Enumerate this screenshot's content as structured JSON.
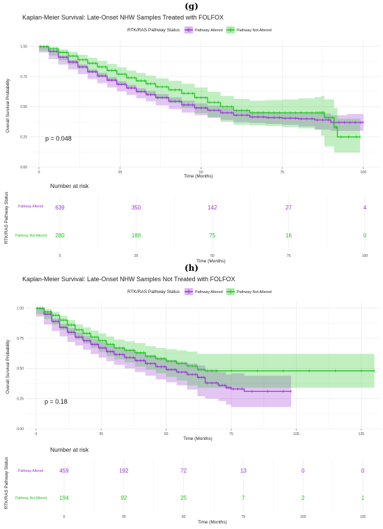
{
  "panels": [
    {
      "panel_label": "(g)",
      "title": "Kaplan-Meier Survival: Late-Onset NHW Samples Treated with FOLFOX",
      "legend_title": "RTK/RAS Pathway Status",
      "legend_items": [
        "Pathway Altered",
        "Pathway Not Altered"
      ],
      "pvalue": "p = 0.048",
      "risk_title": "Number at risk",
      "risk_ylabel": "RTK/RAS Pathway Status",
      "risk_rows": [
        {
          "label": "Pathway Altered",
          "counts": [
            "639",
            "350",
            "142",
            "27",
            "4"
          ]
        },
        {
          "label": "Pathway Not Altered",
          "counts": [
            "280",
            "188",
            "75",
            "16",
            "0"
          ]
        }
      ],
      "risk_xlabel": "Time (Months)"
    },
    {
      "panel_label": "(h)",
      "title": "Kaplan-Meier Survival: Late-Onset NHW Samples Not Treated with FOLFOX",
      "legend_title": "RTK/RAS Pathway Status",
      "legend_items": [
        "Pathway Altered",
        "Pathway Not Altered"
      ],
      "pvalue": "p = 0.18",
      "risk_title": "Number at risk",
      "risk_ylabel": "RTK/RAS Pathway Status",
      "risk_rows": [
        {
          "label": "Pathway Altered",
          "counts": [
            "459",
            "192",
            "72",
            "13",
            "0",
            "0"
          ]
        },
        {
          "label": "Pathway Not Altered",
          "counts": [
            "194",
            "92",
            "25",
            "7",
            "2",
            "1"
          ]
        }
      ],
      "risk_xlabel": "Time (Months)"
    }
  ],
  "colors": {
    "altered": "#9b30d9",
    "not_altered": "#1fc41f",
    "grid": "#ececec",
    "text": "#333333"
  },
  "chart_data": [
    {
      "type": "line",
      "title": "Kaplan-Meier Survival: Late-Onset NHW Samples Treated with FOLFOX",
      "xlabel": "Time (Months)",
      "ylabel": "Overall Survival Probability",
      "xlim": [
        -3,
        105
      ],
      "ylim": [
        0,
        1.05
      ],
      "xticks": [
        0,
        25,
        50,
        75,
        100
      ],
      "yticks": [
        0,
        0.25,
        0.5,
        0.75,
        1.0
      ],
      "ytick_labels": [
        "0.00",
        "0.25",
        "0.50",
        "0.75",
        "1.00"
      ],
      "grid": true,
      "legend_position": "top",
      "series": [
        {
          "name": "Pathway Altered",
          "color": "#9b30d9",
          "x": [
            0,
            3,
            6,
            9,
            12,
            15,
            18,
            21,
            24,
            27,
            30,
            33,
            36,
            40,
            44,
            48,
            52,
            56,
            60,
            65,
            70,
            75,
            80,
            85,
            90,
            95,
            100
          ],
          "y": [
            1.0,
            0.96,
            0.91,
            0.87,
            0.83,
            0.79,
            0.755,
            0.72,
            0.685,
            0.655,
            0.625,
            0.6,
            0.575,
            0.545,
            0.515,
            0.49,
            0.47,
            0.45,
            0.43,
            0.415,
            0.41,
            0.405,
            0.4,
            0.39,
            0.37,
            0.37,
            0.37
          ],
          "ci_lower": [
            1.0,
            0.95,
            0.895,
            0.85,
            0.81,
            0.77,
            0.73,
            0.695,
            0.66,
            0.628,
            0.597,
            0.57,
            0.545,
            0.512,
            0.48,
            0.452,
            0.43,
            0.41,
            0.39,
            0.372,
            0.365,
            0.358,
            0.35,
            0.336,
            0.31,
            0.3,
            0.3
          ],
          "ci_upper": [
            1.0,
            0.97,
            0.925,
            0.89,
            0.85,
            0.81,
            0.78,
            0.745,
            0.71,
            0.682,
            0.653,
            0.63,
            0.605,
            0.578,
            0.55,
            0.528,
            0.51,
            0.49,
            0.47,
            0.458,
            0.455,
            0.452,
            0.45,
            0.444,
            0.43,
            0.44,
            0.45
          ]
        },
        {
          "name": "Pathway Not Altered",
          "color": "#1fc41f",
          "x": [
            0,
            3,
            6,
            9,
            12,
            15,
            18,
            21,
            24,
            27,
            30,
            33,
            36,
            40,
            44,
            48,
            52,
            56,
            60,
            65,
            70,
            75,
            80,
            85,
            87,
            88,
            91,
            92,
            99
          ],
          "y": [
            1.0,
            0.98,
            0.95,
            0.92,
            0.89,
            0.86,
            0.83,
            0.8,
            0.77,
            0.74,
            0.715,
            0.69,
            0.665,
            0.64,
            0.61,
            0.575,
            0.535,
            0.5,
            0.47,
            0.45,
            0.45,
            0.45,
            0.45,
            0.45,
            0.45,
            0.41,
            0.33,
            0.25,
            0.25
          ],
          "ci_lower": [
            1.0,
            0.965,
            0.925,
            0.885,
            0.85,
            0.815,
            0.78,
            0.745,
            0.713,
            0.68,
            0.65,
            0.622,
            0.595,
            0.565,
            0.53,
            0.49,
            0.447,
            0.41,
            0.375,
            0.35,
            0.345,
            0.34,
            0.33,
            0.32,
            0.31,
            0.26,
            0.17,
            0.12,
            0.12
          ],
          "ci_upper": [
            1.0,
            0.995,
            0.975,
            0.955,
            0.93,
            0.905,
            0.88,
            0.855,
            0.827,
            0.8,
            0.78,
            0.758,
            0.735,
            0.715,
            0.69,
            0.66,
            0.623,
            0.59,
            0.565,
            0.55,
            0.555,
            0.56,
            0.57,
            0.58,
            0.59,
            0.56,
            0.49,
            0.4,
            0.4
          ]
        }
      ]
    },
    {
      "type": "line",
      "title": "Kaplan-Meier Survival: Late-Onset NHW Samples Not Treated with FOLFOX",
      "xlabel": "Time (Months)",
      "ylabel": "Overall Survival Probability",
      "xlim": [
        -4,
        132
      ],
      "ylim": [
        0,
        1.05
      ],
      "xticks": [
        0,
        25,
        50,
        75,
        100,
        125
      ],
      "yticks": [
        0,
        0.25,
        0.5,
        0.75,
        1.0
      ],
      "ytick_labels": [
        "0.00",
        "0.25",
        "0.50",
        "0.75",
        "1.00"
      ],
      "grid": true,
      "legend_position": "top",
      "series": [
        {
          "name": "Pathway Altered",
          "color": "#9b30d9",
          "x": [
            0,
            3,
            6,
            9,
            12,
            15,
            18,
            21,
            24,
            27,
            30,
            34,
            38,
            42,
            46,
            50,
            54,
            58,
            62,
            65,
            70,
            73,
            75,
            80,
            98
          ],
          "y": [
            1.0,
            0.95,
            0.89,
            0.84,
            0.8,
            0.76,
            0.73,
            0.7,
            0.67,
            0.64,
            0.615,
            0.59,
            0.565,
            0.54,
            0.515,
            0.49,
            0.47,
            0.45,
            0.425,
            0.38,
            0.36,
            0.34,
            0.33,
            0.31,
            0.31
          ],
          "ci_lower": [
            1.0,
            0.93,
            0.865,
            0.81,
            0.765,
            0.72,
            0.69,
            0.655,
            0.62,
            0.59,
            0.56,
            0.53,
            0.5,
            0.47,
            0.44,
            0.41,
            0.385,
            0.36,
            0.325,
            0.27,
            0.25,
            0.23,
            0.2,
            0.18,
            0.18
          ],
          "ci_upper": [
            1.0,
            0.97,
            0.915,
            0.87,
            0.835,
            0.8,
            0.77,
            0.745,
            0.72,
            0.69,
            0.67,
            0.65,
            0.63,
            0.61,
            0.59,
            0.57,
            0.555,
            0.54,
            0.525,
            0.49,
            0.47,
            0.45,
            0.46,
            0.44,
            0.44
          ]
        },
        {
          "name": "Pathway Not Altered",
          "color": "#1fc41f",
          "x": [
            0,
            3,
            6,
            9,
            12,
            15,
            18,
            21,
            24,
            27,
            30,
            34,
            38,
            42,
            46,
            50,
            54,
            58,
            62,
            65,
            70,
            100,
            130
          ],
          "y": [
            1.0,
            0.97,
            0.94,
            0.9,
            0.86,
            0.82,
            0.79,
            0.76,
            0.73,
            0.7,
            0.67,
            0.65,
            0.63,
            0.6,
            0.58,
            0.56,
            0.54,
            0.52,
            0.49,
            0.48,
            0.48,
            0.48,
            0.48
          ],
          "ci_lower": [
            1.0,
            0.95,
            0.91,
            0.865,
            0.82,
            0.775,
            0.74,
            0.705,
            0.67,
            0.635,
            0.6,
            0.575,
            0.55,
            0.515,
            0.49,
            0.46,
            0.43,
            0.4,
            0.36,
            0.34,
            0.34,
            0.34,
            0.34
          ],
          "ci_upper": [
            1.0,
            0.99,
            0.97,
            0.935,
            0.9,
            0.865,
            0.84,
            0.815,
            0.79,
            0.765,
            0.74,
            0.725,
            0.71,
            0.685,
            0.67,
            0.66,
            0.65,
            0.64,
            0.62,
            0.62,
            0.62,
            0.62,
            0.62
          ]
        }
      ]
    },
    {
      "type": "table",
      "title": "Number at risk",
      "xlabel": "Time (Months)",
      "ylabel": "RTK/RAS Pathway Status",
      "x": [
        0,
        25,
        50,
        75,
        100
      ],
      "rows": [
        {
          "name": "Pathway Altered",
          "values": [
            639,
            350,
            142,
            27,
            4
          ]
        },
        {
          "name": "Pathway Not Altered",
          "values": [
            280,
            188,
            75,
            16,
            0
          ]
        }
      ]
    },
    {
      "type": "table",
      "title": "Number at risk",
      "xlabel": "Time (Months)",
      "ylabel": "RTK/RAS Pathway Status",
      "x": [
        0,
        25,
        50,
        75,
        100,
        125
      ],
      "rows": [
        {
          "name": "Pathway Altered",
          "values": [
            459,
            192,
            72,
            13,
            0,
            0
          ]
        },
        {
          "name": "Pathway Not Altered",
          "values": [
            194,
            92,
            25,
            7,
            2,
            1
          ]
        }
      ]
    }
  ]
}
